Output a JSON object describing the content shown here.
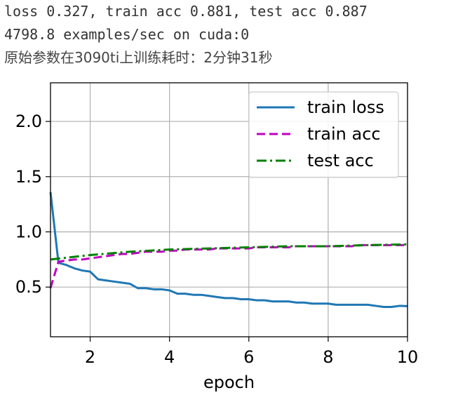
{
  "log": {
    "line1": "loss 0.327, train acc 0.881, test acc 0.887",
    "line2": "4798.8 examples/sec on cuda:0",
    "line3": "原始参数在3090ti上训练耗时：2分钟31秒"
  },
  "chart_data": {
    "type": "line",
    "xlabel": "epoch",
    "ylabel": "",
    "xlim": [
      1,
      10
    ],
    "ylim": [
      0.05,
      2.35
    ],
    "xticks": [
      2,
      4,
      6,
      8,
      10
    ],
    "yticks": [
      0.5,
      1.0,
      1.5,
      2.0
    ],
    "grid": true,
    "legend_position": "upper right",
    "series": [
      {
        "name": "train loss",
        "color": "#1f77b4",
        "style": "solid",
        "x": [
          1.0,
          1.2,
          1.4,
          1.6,
          1.8,
          2.0,
          2.2,
          2.4,
          2.6,
          2.8,
          3.0,
          3.2,
          3.4,
          3.6,
          3.8,
          4.0,
          4.2,
          4.4,
          4.6,
          4.8,
          5.0,
          5.2,
          5.4,
          5.6,
          5.8,
          6.0,
          6.2,
          6.4,
          6.6,
          6.8,
          7.0,
          7.2,
          7.4,
          7.6,
          7.8,
          8.0,
          8.2,
          8.4,
          8.6,
          8.8,
          9.0,
          9.2,
          9.4,
          9.6,
          9.8,
          10.0
        ],
        "values": [
          1.36,
          0.72,
          0.7,
          0.67,
          0.65,
          0.64,
          0.57,
          0.56,
          0.55,
          0.54,
          0.53,
          0.49,
          0.49,
          0.48,
          0.48,
          0.47,
          0.44,
          0.44,
          0.43,
          0.43,
          0.42,
          0.41,
          0.4,
          0.4,
          0.39,
          0.39,
          0.38,
          0.38,
          0.37,
          0.37,
          0.37,
          0.36,
          0.36,
          0.35,
          0.35,
          0.35,
          0.34,
          0.34,
          0.34,
          0.34,
          0.34,
          0.33,
          0.32,
          0.32,
          0.33,
          0.327
        ]
      },
      {
        "name": "train acc",
        "color": "#bf00bf",
        "style": "dashed",
        "x": [
          1.0,
          1.2,
          1.4,
          1.6,
          1.8,
          2.0,
          2.2,
          2.4,
          2.6,
          2.8,
          3.0,
          3.2,
          3.4,
          3.6,
          3.8,
          4.0,
          4.2,
          4.4,
          4.6,
          4.8,
          5.0,
          5.2,
          5.4,
          5.6,
          5.8,
          6.0,
          6.2,
          6.4,
          6.6,
          6.8,
          7.0,
          7.2,
          7.4,
          7.6,
          7.8,
          8.0,
          8.2,
          8.4,
          8.6,
          8.8,
          9.0,
          9.2,
          9.4,
          9.6,
          9.8,
          10.0
        ],
        "values": [
          0.49,
          0.73,
          0.74,
          0.75,
          0.75,
          0.76,
          0.77,
          0.78,
          0.79,
          0.8,
          0.8,
          0.81,
          0.82,
          0.82,
          0.82,
          0.83,
          0.83,
          0.84,
          0.84,
          0.84,
          0.84,
          0.85,
          0.85,
          0.85,
          0.85,
          0.85,
          0.86,
          0.86,
          0.86,
          0.86,
          0.86,
          0.87,
          0.87,
          0.87,
          0.87,
          0.87,
          0.87,
          0.87,
          0.87,
          0.88,
          0.88,
          0.88,
          0.88,
          0.88,
          0.88,
          0.881
        ]
      },
      {
        "name": "test acc",
        "color": "#008000",
        "style": "dashdot",
        "x": [
          1,
          2,
          3,
          4,
          5,
          6,
          7,
          8,
          9,
          10
        ],
        "values": [
          0.75,
          0.79,
          0.82,
          0.84,
          0.85,
          0.86,
          0.87,
          0.87,
          0.88,
          0.887
        ]
      }
    ]
  }
}
